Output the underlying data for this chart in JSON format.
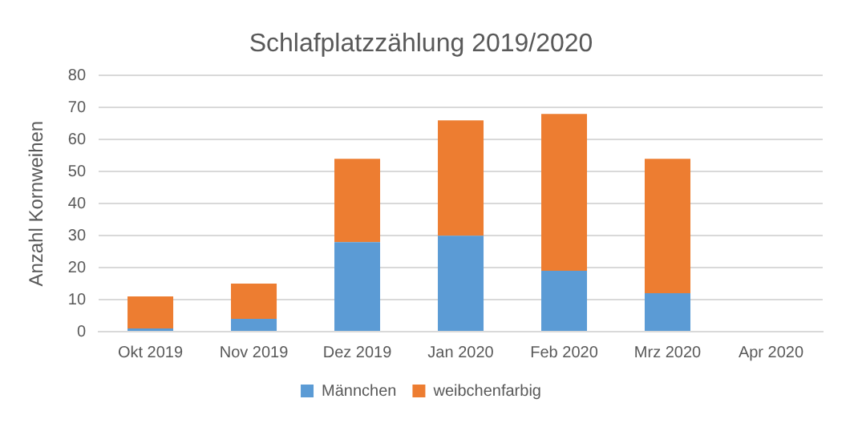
{
  "chart_data": {
    "type": "bar",
    "title": "Schlafplatzzählung 2019/2020",
    "ylabel": "Anzahl Kornweihen",
    "categories": [
      "Okt 2019",
      "Nov 2019",
      "Dez 2019",
      "Jan 2020",
      "Feb 2020",
      "Mrz 2020",
      "Apr 2020"
    ],
    "series": [
      {
        "name": "Männchen",
        "color": "#5b9bd5",
        "values": [
          1,
          4,
          28,
          30,
          19,
          12,
          0
        ]
      },
      {
        "name": "weibchenfarbig",
        "color": "#ed7d31",
        "values": [
          10,
          11,
          26,
          36,
          49,
          42,
          0
        ]
      }
    ],
    "stacked": true,
    "ylim": [
      0,
      80
    ],
    "yticks": [
      0,
      10,
      20,
      30,
      40,
      50,
      60,
      70,
      80
    ],
    "grid": "y",
    "legend": "bottom"
  }
}
